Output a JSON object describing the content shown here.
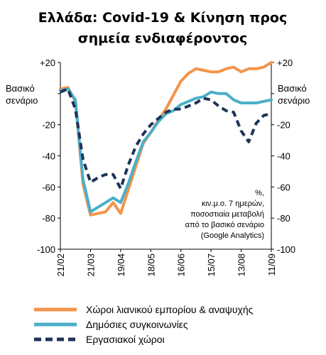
{
  "chart_data": {
    "type": "line",
    "title": [
      "Ελλάδα: Covid-19 & Κίνηση προς",
      "σημεία ενδιαφέροντος"
    ],
    "x": [
      "21/02",
      "28/02",
      "06/03",
      "13/03",
      "21/03",
      "28/03",
      "04/04",
      "11/04",
      "19/04",
      "26/04",
      "03/05",
      "10/05",
      "18/05",
      "25/05",
      "01/06",
      "08/06",
      "16/06",
      "23/06",
      "30/06",
      "07/07",
      "15/07",
      "22/07",
      "29/07",
      "05/08",
      "13/08",
      "20/08",
      "27/08",
      "03/09",
      "11/09"
    ],
    "x_tick_labels": [
      "21/02",
      "21/03",
      "19/04",
      "18/05",
      "16/06",
      "15/07",
      "13/08",
      "11/09"
    ],
    "ylim": [
      -100,
      20
    ],
    "y_ticks": [
      20,
      0,
      -20,
      -40,
      -60,
      -80,
      -100
    ],
    "y_tick_labels": [
      "+20",
      "",
      "-20",
      "-40",
      "-60",
      "-80",
      "-100"
    ],
    "baseline_label": [
      "Βασικό",
      "σενάριο"
    ],
    "annotation": [
      "%,",
      "κιν.μ.ο. 7 ημερών,",
      "ποσοστιαία μεταβολή",
      "από το βασικό σενάριο",
      "(Google Analytics)"
    ],
    "legend_position": "bottom",
    "series": [
      {
        "name": "Χώροι λιανικού εμπορίου & αναψυχής",
        "color": "#F4944A",
        "dash": "solid",
        "values": [
          3,
          4,
          -5,
          -58,
          -78,
          -77,
          -76,
          -70,
          -77,
          -62,
          -47,
          -32,
          -25,
          -17,
          -10,
          -1,
          8,
          13,
          16,
          15,
          14,
          14,
          16,
          17,
          14,
          16,
          16,
          17,
          20
        ]
      },
      {
        "name": "Δημόσιες συγκοινωνίες",
        "color": "#4BAFC8",
        "dash": "solid",
        "values": [
          2,
          3,
          -4,
          -55,
          -76,
          -73,
          -70,
          -67,
          -70,
          -58,
          -44,
          -31,
          -25,
          -18,
          -13,
          -11,
          -7,
          -5,
          -3,
          -2,
          1,
          0,
          0,
          -4,
          -6,
          -6,
          -6,
          -5,
          -4
        ]
      },
      {
        "name": "Εργασιακοί χώροι",
        "color": "#1F3359",
        "dash": "dashed",
        "values": [
          1,
          3,
          -10,
          -42,
          -57,
          -54,
          -52,
          -52,
          -61,
          -46,
          -34,
          -26,
          -20,
          -16,
          -12,
          -10,
          -10,
          -8,
          -6,
          -3,
          -4,
          -8,
          -11,
          -12,
          -24,
          -31,
          -19,
          -14,
          -13
        ]
      }
    ]
  }
}
